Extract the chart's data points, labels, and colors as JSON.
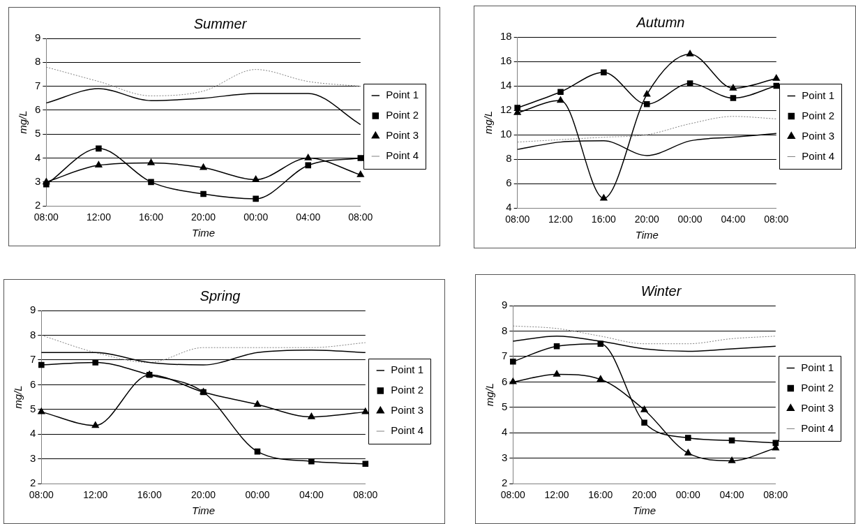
{
  "chart_data": [
    {
      "type": "line",
      "title": "Summer",
      "xlabel": "Time",
      "ylabel": "mg/L",
      "categories": [
        "08:00",
        "12:00",
        "16:00",
        "20:00",
        "00:00",
        "04:00",
        "08:00"
      ],
      "ylim": [
        2,
        9
      ],
      "yticks": [
        2,
        3,
        4,
        5,
        6,
        7,
        8,
        9
      ],
      "grid": "y",
      "legend": "right",
      "series": [
        {
          "name": "Point 1",
          "color": "#000000",
          "marker": "none",
          "line_style": "solid",
          "values": [
            6.3,
            6.9,
            6.4,
            6.5,
            6.7,
            6.7,
            5.4
          ]
        },
        {
          "name": "Point 2",
          "color": "#000000",
          "marker": "square",
          "line_style": "solid",
          "values": [
            2.9,
            4.4,
            3.0,
            2.5,
            2.3,
            3.7,
            4.0
          ]
        },
        {
          "name": "Point 3",
          "color": "#000000",
          "marker": "triangle",
          "line_style": "solid",
          "values": [
            3.0,
            3.7,
            3.8,
            3.6,
            3.1,
            4.0,
            3.3
          ]
        },
        {
          "name": "Point 4",
          "color": "#808080",
          "marker": "none",
          "line_style": "dotted",
          "values": [
            7.8,
            7.2,
            6.6,
            6.8,
            7.7,
            7.2,
            7.0
          ]
        }
      ]
    },
    {
      "type": "line",
      "title": "Autumn",
      "xlabel": "Time",
      "ylabel": "mg/L",
      "categories": [
        "08:00",
        "12:00",
        "16:00",
        "20:00",
        "00:00",
        "04:00",
        "08:00"
      ],
      "ylim": [
        4,
        18
      ],
      "yticks": [
        4,
        6,
        8,
        10,
        12,
        14,
        16,
        18
      ],
      "grid": "y",
      "legend": "right",
      "series": [
        {
          "name": "Point 1",
          "color": "#000000",
          "marker": "none",
          "line_style": "solid",
          "values": [
            8.8,
            9.4,
            9.5,
            8.3,
            9.5,
            9.8,
            10.1
          ]
        },
        {
          "name": "Point 2",
          "color": "#000000",
          "marker": "square",
          "line_style": "solid",
          "values": [
            12.2,
            13.5,
            15.1,
            12.5,
            14.2,
            13.0,
            14.0
          ]
        },
        {
          "name": "Point 3",
          "color": "#000000",
          "marker": "triangle",
          "line_style": "solid",
          "values": [
            11.8,
            12.8,
            4.8,
            13.3,
            16.6,
            13.8,
            14.6
          ]
        },
        {
          "name": "Point 4",
          "color": "#808080",
          "marker": "none",
          "line_style": "dotted",
          "values": [
            9.4,
            9.6,
            9.8,
            10.0,
            10.9,
            11.5,
            11.3
          ]
        }
      ]
    },
    {
      "type": "line",
      "title": "Spring",
      "xlabel": "Time",
      "ylabel": "mg/L",
      "categories": [
        "08:00",
        "12:00",
        "16:00",
        "20:00",
        "00:00",
        "04:00",
        "08:00"
      ],
      "ylim": [
        2,
        9
      ],
      "yticks": [
        2,
        3,
        4,
        5,
        6,
        7,
        8,
        9
      ],
      "grid": "y",
      "legend": "right",
      "series": [
        {
          "name": "Point 1",
          "color": "#000000",
          "marker": "none",
          "line_style": "solid",
          "values": [
            7.3,
            7.3,
            6.9,
            6.8,
            7.3,
            7.4,
            7.3
          ]
        },
        {
          "name": "Point 2",
          "color": "#000000",
          "marker": "square",
          "line_style": "solid",
          "values": [
            6.8,
            6.9,
            6.4,
            5.7,
            3.3,
            2.9,
            2.8
          ]
        },
        {
          "name": "Point 3",
          "color": "#000000",
          "marker": "triangle",
          "line_style": "solid",
          "values": [
            4.9,
            4.35,
            6.4,
            5.7,
            5.2,
            4.7,
            4.9
          ]
        },
        {
          "name": "Point 4",
          "color": "#808080",
          "marker": "none",
          "line_style": "dotted",
          "values": [
            8.0,
            7.3,
            6.9,
            7.5,
            7.5,
            7.5,
            7.7
          ]
        }
      ]
    },
    {
      "type": "line",
      "title": "Winter",
      "xlabel": "Time",
      "ylabel": "mg/L",
      "categories": [
        "08:00",
        "12:00",
        "16:00",
        "20:00",
        "00:00",
        "04:00",
        "08:00"
      ],
      "ylim": [
        2,
        9
      ],
      "yticks": [
        2,
        3,
        4,
        5,
        6,
        7,
        8,
        9
      ],
      "grid": "y",
      "legend": "right",
      "series": [
        {
          "name": "Point 1",
          "color": "#000000",
          "marker": "none",
          "line_style": "solid",
          "values": [
            7.6,
            7.8,
            7.6,
            7.3,
            7.2,
            7.3,
            7.4
          ]
        },
        {
          "name": "Point 2",
          "color": "#000000",
          "marker": "square",
          "line_style": "solid",
          "values": [
            6.8,
            7.4,
            7.5,
            4.4,
            3.8,
            3.7,
            3.6
          ]
        },
        {
          "name": "Point 3",
          "color": "#000000",
          "marker": "triangle",
          "line_style": "solid",
          "values": [
            6.0,
            6.3,
            6.1,
            4.9,
            3.2,
            2.9,
            3.4
          ]
        },
        {
          "name": "Point 4",
          "color": "#808080",
          "marker": "none",
          "line_style": "dotted",
          "values": [
            8.2,
            8.1,
            7.8,
            7.5,
            7.5,
            7.7,
            7.8
          ]
        }
      ]
    }
  ]
}
